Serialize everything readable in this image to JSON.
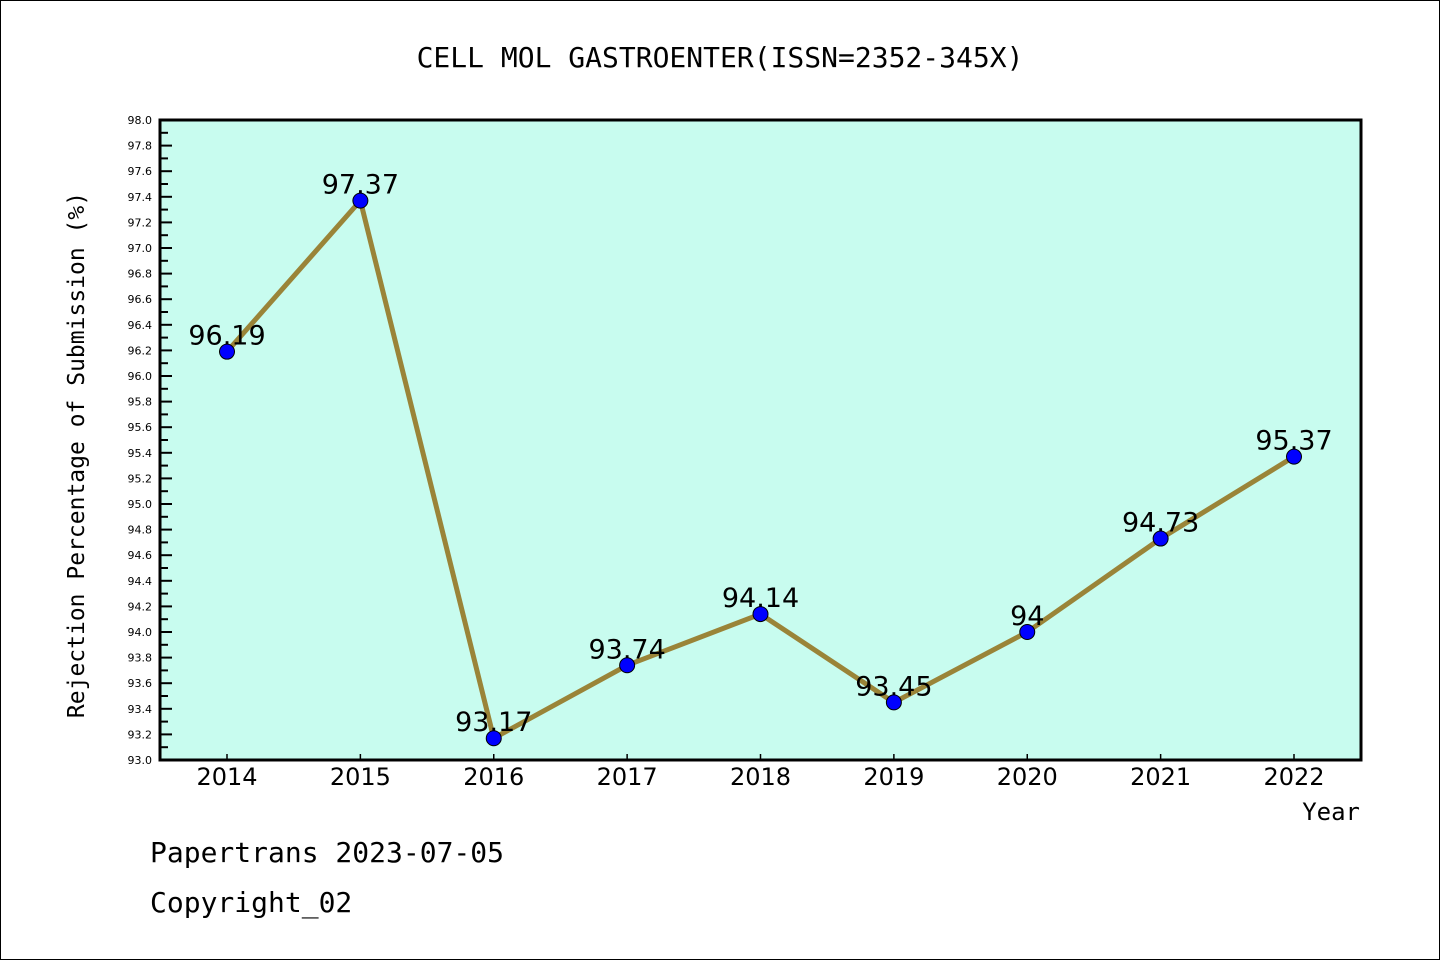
{
  "chart_data": {
    "type": "line",
    "title": "CELL MOL GASTROENTER(ISSN=2352-345X)",
    "xlabel": "Year",
    "ylabel": "Rejection Percentage of Submission (%)",
    "categories": [
      "2014",
      "2015",
      "2016",
      "2017",
      "2018",
      "2019",
      "2020",
      "2021",
      "2022"
    ],
    "series": [
      {
        "name": "Rejection Percentage",
        "values": [
          96.19,
          97.37,
          93.17,
          93.74,
          94.14,
          93.45,
          94.0,
          94.73,
          95.37
        ]
      }
    ],
    "data_labels": [
      "96.19",
      "97.37",
      "93.17",
      "93.74",
      "94.14",
      "93.45",
      "94",
      "94.73",
      "95.37"
    ],
    "ylim": [
      93.0,
      98.0
    ],
    "ytick_step": 0.2,
    "yticks": [
      "93.0",
      "93.2",
      "93.4",
      "93.6",
      "93.8",
      "94.0",
      "94.2",
      "94.4",
      "94.6",
      "94.8",
      "95.0",
      "95.2",
      "95.4",
      "95.6",
      "95.8",
      "96.0",
      "96.2",
      "96.4",
      "96.6",
      "96.8",
      "97.0",
      "97.2",
      "97.4",
      "97.6",
      "97.8",
      "98.0"
    ],
    "grid": false,
    "colors": {
      "plot_bg": "#c8fcef",
      "line": "#9a8438",
      "marker": "#0000ff"
    }
  },
  "footer": {
    "line1": "Papertrans 2023-07-05",
    "line2": "Copyright_02"
  }
}
